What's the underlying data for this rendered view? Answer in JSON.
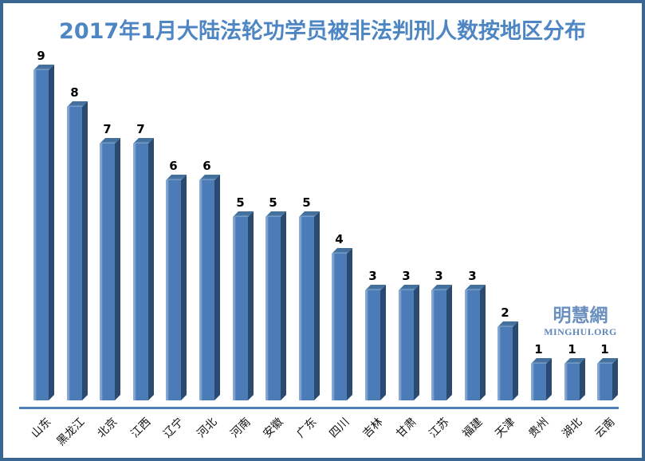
{
  "title": "2017年1月大陆法轮功学员被非法判刑人数按地区分布",
  "watermark": {
    "chinese": "明慧網",
    "domain": "MINGHUI.ORG"
  },
  "chart_data": {
    "type": "bar",
    "title": "2017年1月大陆法轮功学员被非法判刑人数按地区分布",
    "categories": [
      "山东",
      "黑龙江",
      "北京",
      "江西",
      "辽宁",
      "河北",
      "河南",
      "安徽",
      "广东",
      "四川",
      "吉林",
      "甘肃",
      "江苏",
      "福建",
      "天津",
      "贵州",
      "湖北",
      "云南"
    ],
    "values": [
      9,
      8,
      7,
      7,
      6,
      6,
      5,
      5,
      5,
      4,
      3,
      3,
      3,
      3,
      2,
      1,
      1,
      1
    ],
    "xlabel": "",
    "ylabel": "",
    "ylim": [
      0,
      9
    ],
    "grid": false,
    "legend_position": "none",
    "bar_style": "3d",
    "data_labels_shown": true,
    "x_tick_rotation_deg": 45
  },
  "colors": {
    "title-color": "#4e86c4",
    "bar-front": "#4c7cb8",
    "bar-front-hl": "#86a8d2",
    "bar-side": "#2b4a70",
    "bar-top": "#44709e",
    "bar-top-hl": "#7fa3cf",
    "axis-color": "#4f81bd",
    "frame-color": "#3a6693",
    "label-color": "#000000",
    "watermark-color": "#6a90bf",
    "watermark-domain-color": "#5d87ba"
  }
}
